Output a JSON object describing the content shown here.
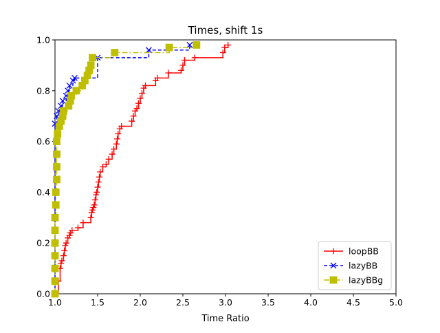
{
  "chart_data": {
    "type": "line",
    "title": "Times, shift 1s",
    "xlabel": "Time Ratio",
    "ylabel": "",
    "xlim": [
      1.0,
      5.0
    ],
    "ylim": [
      0.0,
      1.0
    ],
    "xticks": [
      "1.0",
      "1.5",
      "2.0",
      "2.5",
      "3.0",
      "3.5",
      "4.0",
      "4.5",
      "5.0"
    ],
    "yticks": [
      "0.0",
      "0.2",
      "0.4",
      "0.6",
      "0.8",
      "1.0"
    ],
    "grid": false,
    "legend_position": "lower-right",
    "step": true,
    "series": [
      {
        "name": "loopBB",
        "color": "#ff0000",
        "marker": "plus",
        "linestyle": "solid",
        "points": [
          [
            1.0,
            0.0
          ],
          [
            1.02,
            0.0
          ],
          [
            1.04,
            0.05
          ],
          [
            1.06,
            0.1
          ],
          [
            1.07,
            0.12
          ],
          [
            1.08,
            0.13
          ],
          [
            1.1,
            0.15
          ],
          [
            1.11,
            0.17
          ],
          [
            1.12,
            0.19
          ],
          [
            1.13,
            0.2
          ],
          [
            1.15,
            0.22
          ],
          [
            1.17,
            0.23
          ],
          [
            1.18,
            0.24
          ],
          [
            1.2,
            0.25
          ],
          [
            1.27,
            0.26
          ],
          [
            1.33,
            0.28
          ],
          [
            1.42,
            0.3
          ],
          [
            1.43,
            0.32
          ],
          [
            1.44,
            0.33
          ],
          [
            1.45,
            0.34
          ],
          [
            1.46,
            0.35
          ],
          [
            1.47,
            0.37
          ],
          [
            1.48,
            0.39
          ],
          [
            1.49,
            0.4
          ],
          [
            1.5,
            0.42
          ],
          [
            1.51,
            0.44
          ],
          [
            1.52,
            0.46
          ],
          [
            1.53,
            0.48
          ],
          [
            1.56,
            0.5
          ],
          [
            1.6,
            0.51
          ],
          [
            1.63,
            0.53
          ],
          [
            1.67,
            0.55
          ],
          [
            1.69,
            0.57
          ],
          [
            1.72,
            0.59
          ],
          [
            1.73,
            0.61
          ],
          [
            1.74,
            0.63
          ],
          [
            1.76,
            0.65
          ],
          [
            1.78,
            0.66
          ],
          [
            1.9,
            0.68
          ],
          [
            1.92,
            0.7
          ],
          [
            1.94,
            0.72
          ],
          [
            1.96,
            0.73
          ],
          [
            1.98,
            0.75
          ],
          [
            2.0,
            0.77
          ],
          [
            2.02,
            0.79
          ],
          [
            2.04,
            0.81
          ],
          [
            2.06,
            0.82
          ],
          [
            2.18,
            0.84
          ],
          [
            2.2,
            0.85
          ],
          [
            2.33,
            0.87
          ],
          [
            2.48,
            0.88
          ],
          [
            2.5,
            0.9
          ],
          [
            2.52,
            0.92
          ],
          [
            2.64,
            0.93
          ],
          [
            2.97,
            0.95
          ],
          [
            2.99,
            0.97
          ],
          [
            3.03,
            0.98
          ]
        ]
      },
      {
        "name": "lazyBB",
        "color": "#0000ff",
        "marker": "x",
        "linestyle": "dashed",
        "points": [
          [
            1.0,
            0.0
          ],
          [
            1.0,
            0.67
          ],
          [
            1.02,
            0.7
          ],
          [
            1.04,
            0.72
          ],
          [
            1.07,
            0.74
          ],
          [
            1.09,
            0.76
          ],
          [
            1.13,
            0.78
          ],
          [
            1.15,
            0.8
          ],
          [
            1.17,
            0.82
          ],
          [
            1.21,
            0.84
          ],
          [
            1.23,
            0.85
          ],
          [
            1.5,
            0.93
          ],
          [
            2.1,
            0.96
          ],
          [
            2.58,
            0.98
          ]
        ]
      },
      {
        "name": "lazyBBg",
        "color": "#bfbf00",
        "marker": "square",
        "linestyle": "dashdot",
        "points": [
          [
            1.0,
            0.0
          ],
          [
            1.0,
            0.05
          ],
          [
            1.0,
            0.1
          ],
          [
            1.0,
            0.15
          ],
          [
            1.0,
            0.2
          ],
          [
            1.0,
            0.25
          ],
          [
            1.0,
            0.3
          ],
          [
            1.01,
            0.35
          ],
          [
            1.01,
            0.4
          ],
          [
            1.02,
            0.45
          ],
          [
            1.02,
            0.5
          ],
          [
            1.02,
            0.55
          ],
          [
            1.02,
            0.6
          ],
          [
            1.03,
            0.63
          ],
          [
            1.05,
            0.66
          ],
          [
            1.07,
            0.68
          ],
          [
            1.09,
            0.7
          ],
          [
            1.1,
            0.72
          ],
          [
            1.16,
            0.74
          ],
          [
            1.18,
            0.76
          ],
          [
            1.19,
            0.78
          ],
          [
            1.25,
            0.8
          ],
          [
            1.32,
            0.82
          ],
          [
            1.35,
            0.84
          ],
          [
            1.38,
            0.86
          ],
          [
            1.4,
            0.88
          ],
          [
            1.42,
            0.9
          ],
          [
            1.44,
            0.93
          ],
          [
            1.7,
            0.95
          ],
          [
            2.34,
            0.97
          ],
          [
            2.66,
            0.98
          ]
        ]
      }
    ]
  }
}
